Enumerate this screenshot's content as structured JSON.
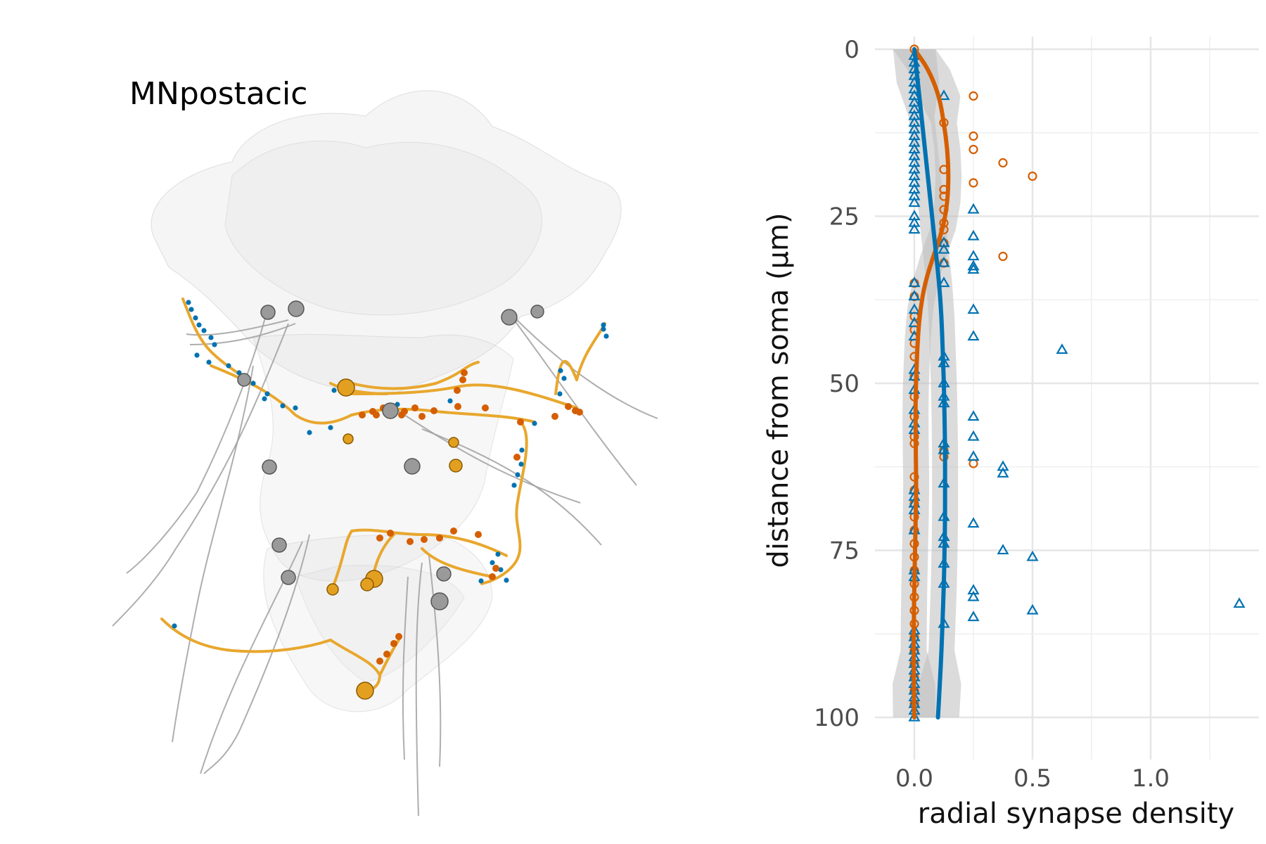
{
  "panel_label": "MNpostacic",
  "chart_data": {
    "type": "scatter",
    "xlabel": "radial synapse density",
    "ylabel": "distance from soma (µm)",
    "xlim": [
      -0.18,
      1.45
    ],
    "ylim": [
      105,
      -5
    ],
    "y_reversed": true,
    "grid": true,
    "legend": "none",
    "x_ticks": [
      0.0,
      0.5,
      1.0
    ],
    "x_tick_labels": [
      "0.0",
      "0.5",
      "1.0"
    ],
    "y_ticks": [
      0,
      25,
      50,
      75,
      100
    ],
    "y_tick_labels": [
      "0",
      "25",
      "50",
      "75",
      "100"
    ],
    "series": [
      {
        "color": "#d55e00",
        "marker": "circle",
        "points": [
          [
            0,
            0
          ],
          [
            0.25,
            7
          ],
          [
            0.125,
            11
          ],
          [
            0.25,
            13
          ],
          [
            0.25,
            15
          ],
          [
            0.375,
            17
          ],
          [
            0.5,
            19
          ],
          [
            0.125,
            18
          ],
          [
            0.25,
            20
          ],
          [
            0.125,
            21
          ],
          [
            0.125,
            22
          ],
          [
            0.125,
            24
          ],
          [
            0.125,
            26
          ],
          [
            0.125,
            27
          ],
          [
            0.125,
            29
          ],
          [
            0.375,
            31
          ],
          [
            0.125,
            32
          ],
          [
            0,
            35
          ],
          [
            0,
            37
          ],
          [
            0,
            40
          ],
          [
            0,
            42
          ],
          [
            0,
            44
          ],
          [
            0,
            46
          ],
          [
            0,
            49
          ],
          [
            0,
            52
          ],
          [
            0,
            55
          ],
          [
            0,
            58
          ],
          [
            0,
            59
          ],
          [
            0.125,
            60
          ],
          [
            0.125,
            61
          ],
          [
            0.25,
            62
          ],
          [
            0,
            64
          ],
          [
            0,
            66
          ],
          [
            0,
            68
          ],
          [
            0,
            70
          ],
          [
            0,
            72
          ],
          [
            0,
            74
          ],
          [
            0,
            76
          ],
          [
            0,
            78
          ],
          [
            0,
            80
          ],
          [
            0,
            82
          ],
          [
            0,
            84
          ],
          [
            0,
            86
          ],
          [
            0,
            88
          ],
          [
            0,
            90
          ],
          [
            0,
            92
          ],
          [
            0,
            94
          ],
          [
            0,
            96
          ],
          [
            0,
            98
          ]
        ],
        "smooth": [
          [
            0,
            0
          ],
          [
            0.06,
            3
          ],
          [
            0.105,
            7
          ],
          [
            0.125,
            11
          ],
          [
            0.14,
            15
          ],
          [
            0.145,
            19
          ],
          [
            0.14,
            23
          ],
          [
            0.12,
            27
          ],
          [
            0.08,
            31
          ],
          [
            0.045,
            35
          ],
          [
            0.025,
            39
          ],
          [
            0.015,
            43
          ],
          [
            0.01,
            47
          ],
          [
            0.006,
            51
          ],
          [
            0.005,
            55
          ],
          [
            0.006,
            60
          ],
          [
            0.008,
            65
          ],
          [
            0.006,
            70
          ],
          [
            0.003,
            75
          ],
          [
            0.0,
            80
          ],
          [
            -0.002,
            85
          ],
          [
            -0.003,
            90
          ],
          [
            -0.002,
            95
          ],
          [
            0.0,
            100
          ]
        ]
      },
      {
        "color": "#0072b2",
        "marker": "triangle",
        "points": [
          [
            0,
            1
          ],
          [
            0,
            2
          ],
          [
            0,
            3
          ],
          [
            0,
            4
          ],
          [
            0,
            5
          ],
          [
            0,
            6
          ],
          [
            0,
            7
          ],
          [
            0,
            8
          ],
          [
            0,
            9
          ],
          [
            0,
            10
          ],
          [
            0,
            11
          ],
          [
            0,
            12
          ],
          [
            0,
            13
          ],
          [
            0,
            14
          ],
          [
            0,
            15
          ],
          [
            0,
            16
          ],
          [
            0,
            17
          ],
          [
            0,
            18
          ],
          [
            0,
            19
          ],
          [
            0,
            20
          ],
          [
            0,
            21
          ],
          [
            0,
            22
          ],
          [
            0,
            23
          ],
          [
            0,
            25
          ],
          [
            0,
            26
          ],
          [
            0,
            27
          ],
          [
            0.125,
            7
          ],
          [
            0.25,
            24
          ],
          [
            0.25,
            28
          ],
          [
            0.125,
            29
          ],
          [
            0.125,
            30
          ],
          [
            0.25,
            31
          ],
          [
            0.125,
            32
          ],
          [
            0.25,
            32.5
          ],
          [
            0.25,
            33
          ],
          [
            0.125,
            35
          ],
          [
            0,
            35
          ],
          [
            0,
            37
          ],
          [
            0,
            39
          ],
          [
            0.25,
            39
          ],
          [
            0,
            41
          ],
          [
            0,
            43
          ],
          [
            0.25,
            43
          ],
          [
            0.625,
            45
          ],
          [
            0.125,
            46
          ],
          [
            0.125,
            47
          ],
          [
            0,
            48
          ],
          [
            0,
            49
          ],
          [
            0.125,
            50
          ],
          [
            0,
            51
          ],
          [
            0.125,
            52
          ],
          [
            0.125,
            53
          ],
          [
            0,
            54
          ],
          [
            0.25,
            55
          ],
          [
            0,
            56
          ],
          [
            0,
            57
          ],
          [
            0.25,
            58
          ],
          [
            0.125,
            59
          ],
          [
            0.125,
            60
          ],
          [
            0.25,
            61
          ],
          [
            0.375,
            62.5
          ],
          [
            0.375,
            63.5
          ],
          [
            0.125,
            65
          ],
          [
            0,
            66
          ],
          [
            0,
            67
          ],
          [
            0,
            68
          ],
          [
            0,
            69
          ],
          [
            0.125,
            70
          ],
          [
            0.25,
            71
          ],
          [
            0,
            72
          ],
          [
            0.125,
            73
          ],
          [
            0.125,
            74
          ],
          [
            0.375,
            75
          ],
          [
            0.5,
            76
          ],
          [
            0.125,
            77
          ],
          [
            0,
            78
          ],
          [
            0,
            79
          ],
          [
            0.125,
            80
          ],
          [
            0.25,
            81
          ],
          [
            0.25,
            82
          ],
          [
            1.375,
            83
          ],
          [
            0.5,
            84
          ],
          [
            0.25,
            85
          ],
          [
            0.125,
            86
          ],
          [
            0,
            87
          ],
          [
            0,
            88
          ],
          [
            0,
            89
          ],
          [
            0,
            90
          ],
          [
            0,
            91
          ],
          [
            0,
            92
          ],
          [
            0,
            93
          ],
          [
            0,
            94
          ],
          [
            0,
            95
          ],
          [
            0,
            96
          ],
          [
            0,
            97
          ],
          [
            0,
            98
          ],
          [
            0,
            99
          ],
          [
            0,
            100
          ]
        ],
        "smooth": [
          [
            0.0,
            0
          ],
          [
            0.015,
            5
          ],
          [
            0.03,
            10
          ],
          [
            0.045,
            15
          ],
          [
            0.06,
            20
          ],
          [
            0.075,
            25
          ],
          [
            0.09,
            30
          ],
          [
            0.105,
            35
          ],
          [
            0.115,
            40
          ],
          [
            0.12,
            45
          ],
          [
            0.125,
            50
          ],
          [
            0.128,
            55
          ],
          [
            0.13,
            60
          ],
          [
            0.13,
            65
          ],
          [
            0.13,
            70
          ],
          [
            0.128,
            75
          ],
          [
            0.125,
            80
          ],
          [
            0.12,
            85
          ],
          [
            0.115,
            90
          ],
          [
            0.108,
            95
          ],
          [
            0.1,
            100
          ]
        ]
      }
    ]
  }
}
